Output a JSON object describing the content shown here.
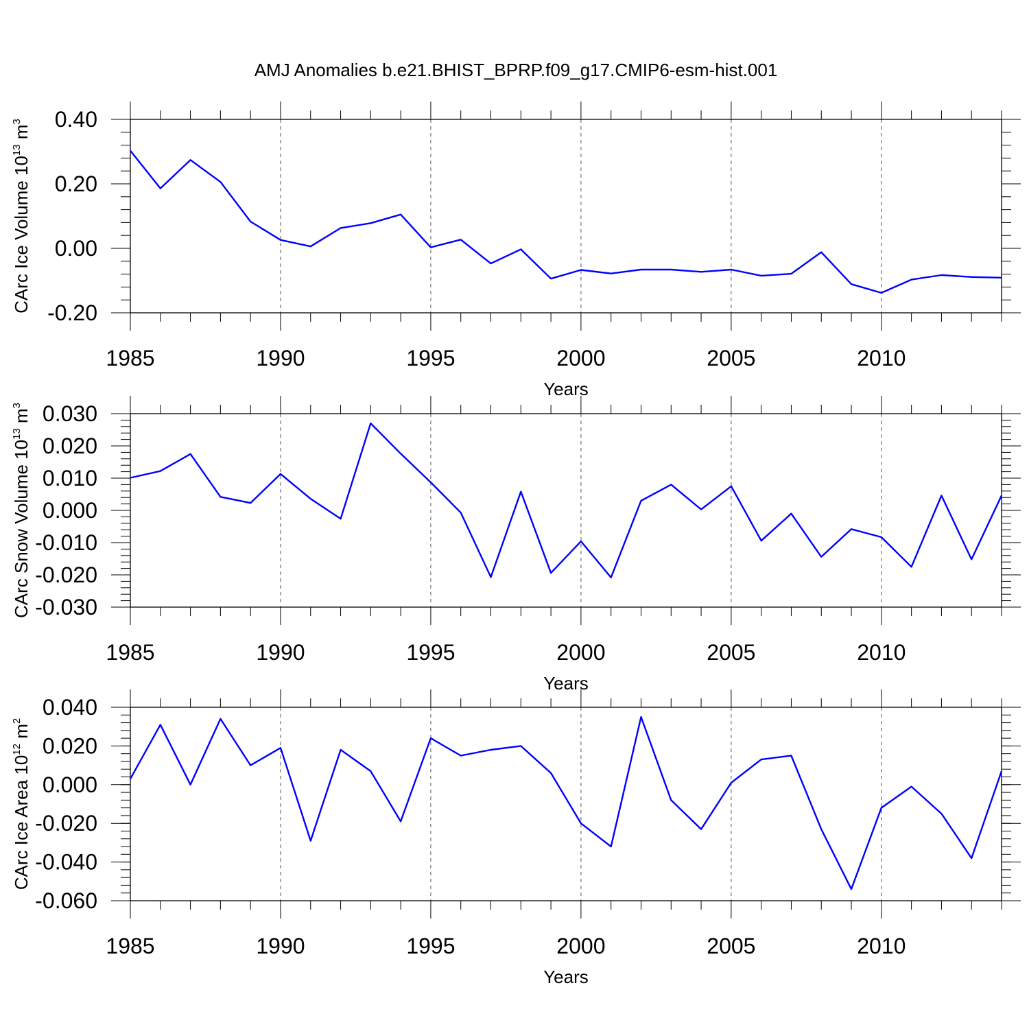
{
  "title": "AMJ Anomalies b.e21.BHIST_BPRP.f09_g17.CMIP6-esm-hist.001",
  "chart_data": [
    {
      "type": "line",
      "ylabel": "CArc Ice Volume 10",
      "ylabel_exp": "13",
      "ylabel_unit": "m",
      "ylabel_unit_exp": "3",
      "xlabel": "Years",
      "xlim": [
        1985,
        2014
      ],
      "ylim": [
        -0.2,
        0.4
      ],
      "y_ticks": [
        -0.2,
        0.0,
        0.2,
        0.4
      ],
      "y_tick_labels": [
        "-0.20",
        "0.00",
        "0.20",
        "0.40"
      ],
      "y_minor_step": 0.04,
      "x_ticks": [
        1985,
        1990,
        1995,
        2000,
        2005,
        2010
      ],
      "x_tick_labels": [
        "1985",
        "1990",
        "1995",
        "2000",
        "2005",
        "2010"
      ],
      "grid": "vertical-dashed",
      "color": "#0000ff",
      "x": [
        1985,
        1986,
        1987,
        1988,
        1989,
        1990,
        1991,
        1992,
        1993,
        1994,
        1995,
        1996,
        1997,
        1998,
        1999,
        2000,
        2001,
        2002,
        2003,
        2004,
        2005,
        2006,
        2007,
        2008,
        2009,
        2010,
        2011,
        2012,
        2013,
        2014
      ],
      "values": [
        0.303,
        0.186,
        0.274,
        0.206,
        0.083,
        0.026,
        0.006,
        0.063,
        0.078,
        0.105,
        0.003,
        0.027,
        -0.047,
        -0.003,
        -0.094,
        -0.067,
        -0.078,
        -0.066,
        -0.066,
        -0.073,
        -0.066,
        -0.085,
        -0.079,
        -0.012,
        -0.111,
        -0.138,
        -0.097,
        -0.083,
        -0.089,
        -0.091
      ]
    },
    {
      "type": "line",
      "ylabel": "CArc Snow Volume 10",
      "ylabel_exp": "13",
      "ylabel_unit": "m",
      "ylabel_unit_exp": "3",
      "xlabel": "Years",
      "xlim": [
        1985,
        2014
      ],
      "ylim": [
        -0.03,
        0.03
      ],
      "y_ticks": [
        -0.03,
        -0.02,
        -0.01,
        0.0,
        0.01,
        0.02,
        0.03
      ],
      "y_tick_labels": [
        "-0.030",
        "-0.020",
        "-0.010",
        "0.000",
        "0.010",
        "0.020",
        "0.030"
      ],
      "y_minor_step": 0.002,
      "x_ticks": [
        1985,
        1990,
        1995,
        2000,
        2005,
        2010
      ],
      "x_tick_labels": [
        "1985",
        "1990",
        "1995",
        "2000",
        "2005",
        "2010"
      ],
      "grid": "vertical-dashed",
      "color": "#0000ff",
      "x": [
        1985,
        1986,
        1987,
        1988,
        1989,
        1990,
        1991,
        1992,
        1993,
        1994,
        1995,
        1996,
        1997,
        1998,
        1999,
        2000,
        2001,
        2002,
        2003,
        2004,
        2005,
        2006,
        2007,
        2008,
        2009,
        2010,
        2011,
        2012,
        2013,
        2014
      ],
      "values": [
        0.0101,
        0.0122,
        0.0175,
        0.0042,
        0.0023,
        0.0113,
        0.0036,
        -0.0026,
        0.027,
        0.0176,
        0.0087,
        -0.0007,
        -0.0207,
        0.0058,
        -0.0194,
        -0.0096,
        -0.0208,
        0.003,
        0.008,
        0.0003,
        0.0075,
        -0.0094,
        -0.001,
        -0.0144,
        -0.0058,
        -0.0083,
        -0.0175,
        0.0046,
        -0.0152,
        0.0046
      ]
    },
    {
      "type": "line",
      "ylabel": "CArc Ice Area 10",
      "ylabel_exp": "12",
      "ylabel_unit": "m",
      "ylabel_unit_exp": "2",
      "xlabel": "Years",
      "xlim": [
        1985,
        2014
      ],
      "ylim": [
        -0.06,
        0.04
      ],
      "y_ticks": [
        -0.06,
        -0.04,
        -0.02,
        0.0,
        0.02,
        0.04
      ],
      "y_tick_labels": [
        "-0.060",
        "-0.040",
        "-0.020",
        "0.000",
        "0.020",
        "0.040"
      ],
      "y_minor_step": 0.004,
      "x_ticks": [
        1985,
        1990,
        1995,
        2000,
        2005,
        2010
      ],
      "x_tick_labels": [
        "1985",
        "1990",
        "1995",
        "2000",
        "2005",
        "2010"
      ],
      "grid": "vertical-dashed",
      "color": "#0000ff",
      "x": [
        1985,
        1986,
        1987,
        1988,
        1989,
        1990,
        1991,
        1992,
        1993,
        1994,
        1995,
        1996,
        1997,
        1998,
        1999,
        2000,
        2001,
        2002,
        2003,
        2004,
        2005,
        2006,
        2007,
        2008,
        2009,
        2010,
        2011,
        2012,
        2013,
        2014
      ],
      "values": [
        0.003,
        0.031,
        0.0,
        0.034,
        0.01,
        0.019,
        -0.029,
        0.018,
        0.007,
        -0.019,
        0.024,
        0.015,
        0.018,
        0.02,
        0.006,
        -0.02,
        -0.032,
        0.035,
        -0.008,
        -0.023,
        0.001,
        0.013,
        0.015,
        -0.023,
        -0.054,
        -0.012,
        -0.001,
        -0.015,
        -0.038,
        0.007
      ]
    }
  ]
}
